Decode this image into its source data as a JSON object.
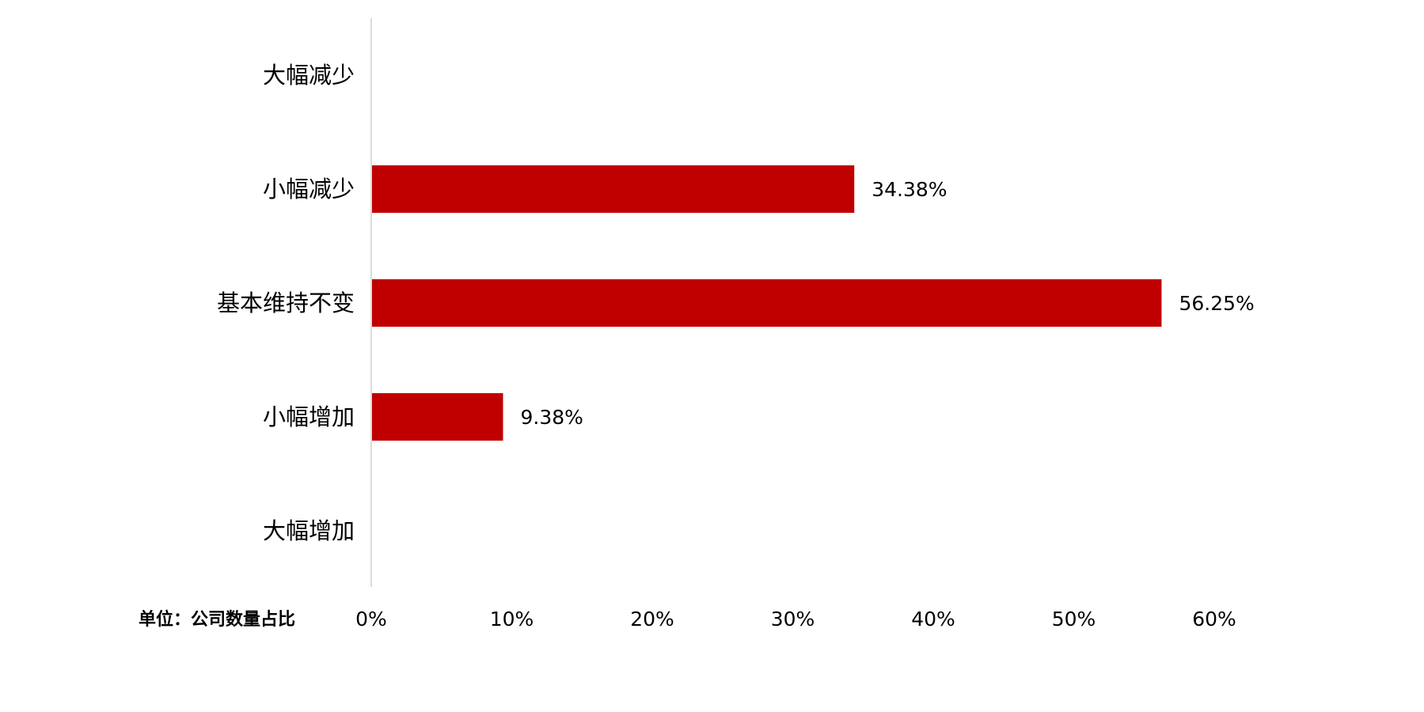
{
  "chart_data": {
    "type": "bar",
    "orientation": "horizontal",
    "categories": [
      "大幅减少",
      "小幅减少",
      "基本维持不变",
      "小幅增加",
      "大幅增加"
    ],
    "values": [
      null,
      34.38,
      56.25,
      9.38,
      null
    ],
    "data_labels": [
      "",
      "34.38%",
      "56.25%",
      "9.38%",
      ""
    ],
    "xlim": [
      0,
      60
    ],
    "xticks": [
      "0%",
      "10%",
      "20%",
      "30%",
      "40%",
      "50%",
      "60%"
    ],
    "unit_label": "单位：公司数量占比",
    "grid": false,
    "legend": "none",
    "bar_color": "#C00000"
  }
}
